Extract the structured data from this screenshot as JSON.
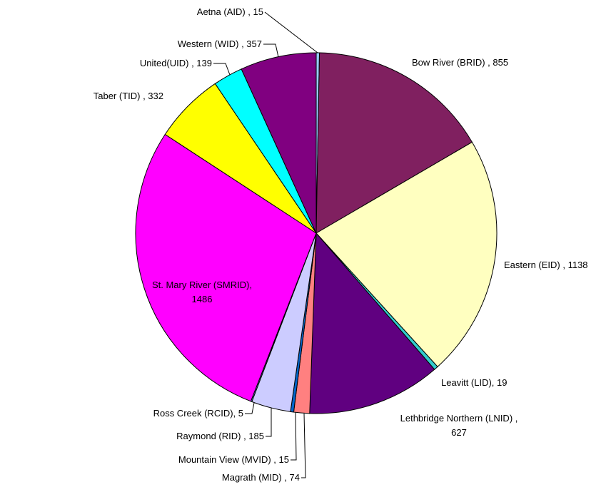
{
  "chart_data": {
    "type": "pie",
    "categories": [
      "Aetna (AID) , 15",
      "Bow River (BRID) , 855",
      "Eastern (EID) , 1138",
      "Leavitt (LID), 19",
      "Lethbridge Northern (LNID) ,\n627",
      "Magrath (MID) , 74",
      "Mountain View (MVID) , 15",
      "Raymond (RID) , 185",
      "Ross Creek (RCID), 5",
      "St. Mary River (SMRID),\n1486",
      "Taber (TID) , 332",
      "United(UID) , 139",
      "Western (WID) , 357"
    ],
    "values": [
      15,
      855,
      1138,
      19,
      627,
      74,
      15,
      185,
      5,
      1486,
      332,
      139,
      357
    ],
    "colors": [
      "#99ccff",
      "#802060",
      "#ffffc0",
      "#33cccc",
      "#600080",
      "#ff8080",
      "#0066cc",
      "#ccccff",
      "#6699ff",
      "#ff00ff",
      "#ffff00",
      "#00ffff",
      "#800080"
    ]
  }
}
